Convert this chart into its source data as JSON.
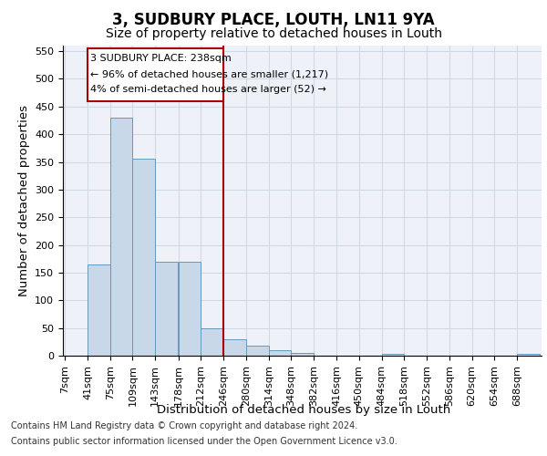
{
  "title_main": "3, SUDBURY PLACE, LOUTH, LN11 9YA",
  "title_sub": "Size of property relative to detached houses in Louth",
  "xlabel": "Distribution of detached houses by size in Louth",
  "ylabel": "Number of detached properties",
  "footer1": "Contains HM Land Registry data © Crown copyright and database right 2024.",
  "footer2": "Contains public sector information licensed under the Open Government Licence v3.0.",
  "annotation_line1": "3 SUDBURY PLACE: 238sqm",
  "annotation_line2": "← 96% of detached houses are smaller (1,217)",
  "annotation_line3": "4% of semi-detached houses are larger (52) →",
  "bar_color": "#c8d8e8",
  "bar_edge_color": "#6699bb",
  "grid_color": "#d0d8e8",
  "bg_color": "#eef2f8",
  "ref_line_color": "#aa0000",
  "ref_line_x": 246,
  "categories": [
    "7sqm",
    "41sqm",
    "75sqm",
    "109sqm",
    "143sqm",
    "178sqm",
    "212sqm",
    "246sqm",
    "280sqm",
    "314sqm",
    "348sqm",
    "382sqm",
    "416sqm",
    "450sqm",
    "484sqm",
    "518sqm",
    "552sqm",
    "586sqm",
    "620sqm",
    "654sqm",
    "688sqm"
  ],
  "bin_starts": [
    7,
    41,
    75,
    109,
    143,
    178,
    212,
    246,
    280,
    314,
    348,
    382,
    416,
    450,
    484,
    518,
    552,
    586,
    620,
    654,
    688
  ],
  "bin_width": 34,
  "values": [
    0,
    165,
    430,
    355,
    170,
    170,
    50,
    30,
    18,
    10,
    5,
    0,
    0,
    0,
    3,
    0,
    0,
    0,
    0,
    0,
    3
  ],
  "ylim": [
    0,
    560
  ],
  "yticks": [
    0,
    50,
    100,
    150,
    200,
    250,
    300,
    350,
    400,
    450,
    500,
    550
  ],
  "title_fontsize": 12,
  "subtitle_fontsize": 10,
  "axis_label_fontsize": 9.5,
  "tick_fontsize": 8,
  "annotation_fontsize": 8,
  "footer_fontsize": 7
}
